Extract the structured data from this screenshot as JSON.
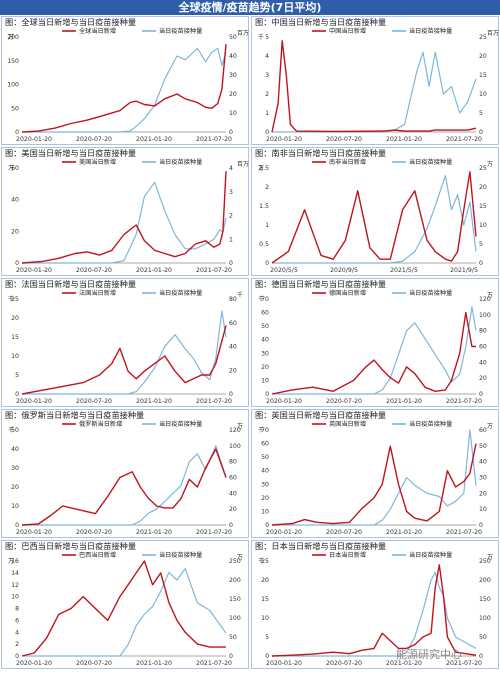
{
  "page_title": "全球疫情/疫苗趋势(7日平均)",
  "watermark": "能源研究中心",
  "colors": {
    "cases": "#c0141c",
    "vaccine": "#7fb6dc",
    "banner": "#2f5ea8"
  },
  "chart_data": [
    {
      "type": "line",
      "title": "图：全球当日新增与当日疫苗接种量",
      "legend": [
        "全球当日新增",
        "当日疫苗接种量"
      ],
      "xticks": [
        "2020-01-20",
        "2020-07-20",
        "2021-01-20",
        "2021-07-20"
      ],
      "yleft": {
        "ticks": [
          0,
          50,
          100,
          150,
          200
        ],
        "unit": "万"
      },
      "yright": {
        "ticks": [
          0,
          10,
          20,
          30,
          40,
          50
        ],
        "unit": "百万"
      },
      "x": [
        0,
        0.08,
        0.16,
        0.24,
        0.32,
        0.4,
        0.48,
        0.53,
        0.56,
        0.6,
        0.65,
        0.7,
        0.76,
        0.8,
        0.86,
        0.9,
        0.93,
        0.96,
        0.98,
        1.0
      ],
      "series": [
        {
          "name": "全球当日新增",
          "axis": "left",
          "values": [
            0,
            2,
            8,
            18,
            25,
            35,
            45,
            62,
            65,
            58,
            55,
            70,
            80,
            70,
            62,
            52,
            50,
            60,
            90,
            185
          ]
        },
        {
          "name": "当日疫苗接种量",
          "axis": "right",
          "values": [
            0,
            0,
            0,
            0,
            0,
            0,
            0,
            0.5,
            3,
            7,
            14,
            28,
            40,
            38,
            44,
            37,
            42,
            44,
            35,
            42
          ]
        }
      ]
    },
    {
      "type": "line",
      "title": "图：中国当日新增与当日疫苗接种量",
      "legend": [
        "中国当日新增",
        "当日疫苗接种量"
      ],
      "xticks": [
        "2020-01-20",
        "2020-07-20",
        "2021-01-20",
        "2021-07-20"
      ],
      "yleft": {
        "ticks": [
          0,
          1,
          2,
          3,
          4,
          5
        ],
        "unit": "千"
      },
      "yright": {
        "ticks": [
          0,
          5,
          10,
          15,
          20,
          25
        ],
        "unit": "百万"
      },
      "x": [
        0,
        0.03,
        0.05,
        0.07,
        0.09,
        0.12,
        0.3,
        0.55,
        0.6,
        0.65,
        0.68,
        0.71,
        0.74,
        0.77,
        0.8,
        0.84,
        0.88,
        0.92,
        0.96,
        1.0
      ],
      "series": [
        {
          "name": "中国当日新增",
          "axis": "left",
          "values": [
            0,
            1.5,
            4.8,
            3,
            0.4,
            0.05,
            0.03,
            0.05,
            0.1,
            0.05,
            0.05,
            0.05,
            0.05,
            0.05,
            0.1,
            0.1,
            0.1,
            0.1,
            0.1,
            0.2
          ]
        },
        {
          "name": "当日疫苗接种量",
          "axis": "right",
          "values": [
            0,
            0,
            0,
            0,
            0,
            0,
            0,
            0,
            0.5,
            2,
            9,
            16,
            21,
            12,
            21,
            10,
            12,
            5,
            8,
            14
          ]
        }
      ]
    },
    {
      "type": "line",
      "title": "图：美国当日新增与当日疫苗接种量",
      "legend": [
        "美国当日新增",
        "当日疫苗接种量"
      ],
      "xticks": [
        "2020-01-20",
        "2020-07-20",
        "2021-01-20",
        "2021-07-20"
      ],
      "yleft": {
        "ticks": [
          0,
          20,
          40,
          60
        ],
        "unit": "万"
      },
      "yright": {
        "ticks": [
          0,
          1,
          2,
          3,
          4
        ],
        "unit": "百万"
      },
      "x": [
        0,
        0.1,
        0.18,
        0.26,
        0.32,
        0.38,
        0.44,
        0.5,
        0.56,
        0.6,
        0.65,
        0.7,
        0.75,
        0.8,
        0.85,
        0.9,
        0.94,
        0.97,
        0.985,
        1.0
      ],
      "series": [
        {
          "name": "美国当日新增",
          "axis": "left",
          "values": [
            0,
            1,
            3,
            6,
            7,
            5,
            8,
            18,
            24,
            14,
            8,
            6,
            4,
            6,
            12,
            14,
            10,
            12,
            20,
            58
          ]
        },
        {
          "name": "当日疫苗接种量",
          "axis": "right",
          "values": [
            0,
            0,
            0,
            0,
            0,
            0,
            0,
            0.1,
            1.2,
            2.8,
            3.4,
            2.2,
            1.2,
            0.6,
            0.6,
            0.8,
            1.0,
            1.4,
            1.3,
            1.9
          ]
        }
      ]
    },
    {
      "type": "line",
      "title": "图：南非当日新增与当日疫苗接种量",
      "legend": [
        "南非当日新增",
        "当日疫苗接种量"
      ],
      "xticks": [
        "2020/5/5",
        "2020/9/5",
        "2021/5/5",
        "2021/9/5"
      ],
      "yleft": {
        "ticks": [
          0,
          0.5,
          1,
          1.5,
          2,
          2.5
        ],
        "unit": "万"
      },
      "yright": {
        "ticks": [
          0,
          5,
          10,
          15,
          20,
          25
        ],
        "unit": "万"
      },
      "x": [
        0,
        0.08,
        0.16,
        0.24,
        0.3,
        0.36,
        0.42,
        0.48,
        0.53,
        0.58,
        0.64,
        0.7,
        0.76,
        0.8,
        0.85,
        0.88,
        0.91,
        0.94,
        0.97,
        1.0
      ],
      "series": [
        {
          "name": "南非当日新增",
          "axis": "left",
          "values": [
            0,
            0.3,
            1.4,
            0.2,
            0.1,
            0.6,
            1.9,
            0.4,
            0.1,
            0.1,
            1.4,
            1.9,
            0.6,
            0.3,
            0.1,
            0.05,
            0.3,
            1.4,
            2.4,
            0.7
          ]
        },
        {
          "name": "当日疫苗接种量",
          "axis": "right",
          "values": [
            0,
            0,
            0,
            0,
            0,
            0,
            0,
            0,
            0,
            0,
            0.5,
            3,
            9,
            15,
            23,
            14,
            18,
            10,
            16,
            3
          ]
        }
      ]
    },
    {
      "type": "line",
      "title": "图：法国当日新增与当日疫苗接种量",
      "legend": [
        "法国当日新增",
        "当日疫苗接种量"
      ],
      "xticks": [
        "2020-01-20",
        "2020-07-20",
        "2021-01-20",
        "2021-07-20"
      ],
      "yleft": {
        "ticks": [
          0,
          5,
          10,
          15,
          20,
          25
        ],
        "unit": "千"
      },
      "yright": {
        "ticks": [
          0,
          20,
          40,
          60,
          80
        ],
        "unit": "千"
      },
      "x": [
        0,
        0.1,
        0.2,
        0.3,
        0.38,
        0.44,
        0.48,
        0.52,
        0.56,
        0.6,
        0.65,
        0.7,
        0.75,
        0.8,
        0.84,
        0.88,
        0.92,
        0.95,
        0.98,
        1.0
      ],
      "series": [
        {
          "name": "法国当日新增",
          "axis": "left",
          "values": [
            0,
            1,
            2,
            3,
            5,
            8,
            12,
            6,
            4,
            6,
            8,
            10,
            6,
            3,
            4,
            5,
            5,
            8,
            14,
            18
          ]
        },
        {
          "name": "当日疫苗接种量",
          "axis": "right",
          "values": [
            0,
            0,
            0,
            0,
            0,
            0,
            0,
            0,
            2,
            10,
            22,
            40,
            50,
            38,
            30,
            18,
            12,
            30,
            70,
            48
          ]
        }
      ]
    },
    {
      "type": "line",
      "title": "图：德国当日新增与当日疫苗接种量",
      "legend": [
        "德国当日新增",
        "当日疫苗接种量"
      ],
      "xticks": [
        "2020-01-20",
        "2020-07-20",
        "2021-01-20",
        "2021-07-20"
      ],
      "yleft": {
        "ticks": [
          0,
          10,
          20,
          30,
          40,
          50,
          60,
          70
        ],
        "unit": "千"
      },
      "yright": {
        "ticks": [
          0,
          20,
          40,
          60,
          80,
          100,
          120
        ],
        "unit": "万"
      },
      "x": [
        0,
        0.1,
        0.2,
        0.3,
        0.4,
        0.46,
        0.5,
        0.54,
        0.58,
        0.62,
        0.66,
        0.7,
        0.75,
        0.8,
        0.85,
        0.88,
        0.92,
        0.95,
        0.98,
        1.0
      ],
      "series": [
        {
          "name": "德国当日新增",
          "axis": "left",
          "values": [
            0,
            3,
            5,
            2,
            10,
            20,
            25,
            18,
            12,
            8,
            20,
            15,
            5,
            2,
            3,
            10,
            30,
            60,
            35,
            35
          ]
        },
        {
          "name": "当日疫苗接种量",
          "axis": "right",
          "values": [
            0,
            0,
            0,
            0,
            0,
            0,
            0,
            5,
            20,
            50,
            80,
            90,
            70,
            50,
            30,
            15,
            25,
            60,
            110,
            80
          ]
        }
      ]
    },
    {
      "type": "line",
      "title": "图：俄罗斯当日新增与当日疫苗接种量",
      "legend": [
        "俄罗斯当日新增",
        "当日疫苗接种量"
      ],
      "xticks": [
        "2020-01-20",
        "2020-07-20",
        "2021-01-20",
        "2021-07-20"
      ],
      "yleft": {
        "ticks": [
          0,
          10,
          20,
          30,
          40,
          50
        ],
        "unit": "千"
      },
      "yright": {
        "ticks": [
          0,
          20,
          40,
          60,
          80,
          100,
          120
        ],
        "unit": "万"
      },
      "x": [
        0,
        0.08,
        0.14,
        0.2,
        0.28,
        0.36,
        0.42,
        0.48,
        0.54,
        0.58,
        0.62,
        0.66,
        0.7,
        0.74,
        0.78,
        0.82,
        0.86,
        0.9,
        0.95,
        1.0
      ],
      "series": [
        {
          "name": "俄罗斯当日新增",
          "axis": "left",
          "values": [
            0,
            0.5,
            5,
            10,
            8,
            6,
            15,
            25,
            28,
            20,
            14,
            10,
            9,
            9,
            14,
            24,
            20,
            30,
            40,
            25
          ]
        },
        {
          "name": "当日疫苗接种量",
          "axis": "right",
          "values": [
            0,
            0,
            0,
            0,
            0,
            0,
            0,
            0,
            0,
            5,
            15,
            20,
            30,
            40,
            50,
            80,
            90,
            70,
            100,
            60
          ]
        }
      ]
    },
    {
      "type": "line",
      "title": "图：英国当日新增与当日疫苗接种量",
      "legend": [
        "英国当日新增",
        "当日疫苗接种量"
      ],
      "xticks": [
        "2020-01-20",
        "2020-07-20",
        "2021-01-20",
        "2021-07-20"
      ],
      "yleft": {
        "ticks": [
          0,
          10,
          20,
          30,
          40,
          50,
          60,
          70
        ],
        "unit": "千"
      },
      "yright": {
        "ticks": [
          0,
          10,
          20,
          30,
          40,
          50,
          60
        ],
        "unit": "万"
      },
      "x": [
        0,
        0.1,
        0.16,
        0.22,
        0.3,
        0.38,
        0.44,
        0.5,
        0.54,
        0.58,
        0.62,
        0.66,
        0.7,
        0.76,
        0.82,
        0.86,
        0.9,
        0.94,
        0.97,
        1.0
      ],
      "series": [
        {
          "name": "英国当日新增",
          "axis": "left",
          "values": [
            0,
            1,
            4,
            2,
            1,
            2,
            12,
            20,
            30,
            58,
            30,
            10,
            5,
            3,
            10,
            40,
            28,
            32,
            38,
            60
          ]
        },
        {
          "name": "当日疫苗接种量",
          "axis": "right",
          "values": [
            0,
            0,
            0,
            0,
            0,
            0,
            0,
            0,
            3,
            10,
            20,
            30,
            25,
            20,
            18,
            12,
            15,
            20,
            60,
            25
          ]
        }
      ]
    },
    {
      "type": "line",
      "title": "图：巴西当日新增与当日疫苗接种量",
      "legend": [
        "巴西当日新增",
        "当日疫苗接种量"
      ],
      "xticks": [
        "2020-01-20",
        "2020-07-20",
        "2021-01-20",
        "2021-07-20"
      ],
      "yleft": {
        "ticks": [
          0,
          2,
          4,
          6,
          8,
          10,
          12,
          14,
          16
        ],
        "unit": "万"
      },
      "yright": {
        "ticks": [
          0,
          50,
          100,
          150,
          200,
          250
        ],
        "unit": "万"
      },
      "x": [
        0,
        0.06,
        0.12,
        0.18,
        0.24,
        0.3,
        0.36,
        0.42,
        0.48,
        0.52,
        0.56,
        0.6,
        0.64,
        0.68,
        0.72,
        0.76,
        0.8,
        0.86,
        0.92,
        1.0
      ],
      "series": [
        {
          "name": "巴西当日新增",
          "axis": "left",
          "values": [
            0,
            0.5,
            3,
            7,
            8,
            10,
            8,
            6,
            10,
            12,
            14,
            16,
            12,
            14,
            9,
            6,
            4,
            2,
            1.5,
            1.5
          ]
        },
        {
          "name": "当日疫苗接种量",
          "axis": "right",
          "values": [
            0,
            0,
            0,
            0,
            0,
            0,
            0,
            0,
            0,
            30,
            80,
            110,
            130,
            170,
            220,
            200,
            230,
            140,
            120,
            60
          ]
        }
      ]
    },
    {
      "type": "line",
      "title": "图：日本当日新增与当日疫苗接种量",
      "legend": [
        "日本当日新增",
        "当日疫苗接种量"
      ],
      "xticks": [
        "2020-01-20",
        "2020-07-20",
        "2021-01-20",
        "2021-07-20"
      ],
      "yleft": {
        "ticks": [
          0,
          5,
          10,
          15,
          20,
          25
        ],
        "unit": "千"
      },
      "yright": {
        "ticks": [
          0,
          50,
          100,
          150,
          200,
          250
        ],
        "unit": "万"
      },
      "x": [
        0,
        0.1,
        0.2,
        0.3,
        0.38,
        0.44,
        0.5,
        0.54,
        0.58,
        0.62,
        0.66,
        0.7,
        0.74,
        0.78,
        0.8,
        0.82,
        0.84,
        0.86,
        0.9,
        1.0
      ],
      "series": [
        {
          "name": "日本当日新增",
          "axis": "left",
          "values": [
            0,
            0.2,
            0.5,
            1,
            0.6,
            1.5,
            2,
            6,
            4,
            2,
            2,
            3,
            5,
            6,
            18,
            24,
            16,
            5,
            1,
            0.2
          ]
        },
        {
          "name": "当日疫苗接种量",
          "axis": "right",
          "values": [
            0,
            0,
            0,
            0,
            0,
            0,
            0,
            0,
            0,
            0,
            10,
            50,
            120,
            200,
            220,
            180,
            160,
            100,
            50,
            20
          ]
        }
      ]
    }
  ]
}
